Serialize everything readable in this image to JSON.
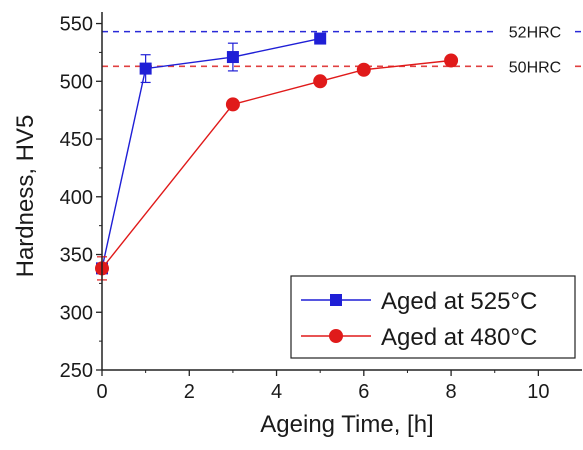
{
  "chart_data": {
    "type": "line",
    "xlabel": "Ageing Time, [h]",
    "ylabel": "Hardness, HV5",
    "xlim": [
      0,
      11
    ],
    "ylim": [
      250,
      560
    ],
    "xticks": [
      0,
      2,
      4,
      6,
      8,
      10
    ],
    "yticks": [
      250,
      300,
      350,
      400,
      450,
      500,
      550
    ],
    "grid": false,
    "legend_position": "bottom-right",
    "reference_lines": [
      {
        "label": "52HRC",
        "y": 543,
        "color": "#2a2ad8"
      },
      {
        "label": "50HRC",
        "y": 513,
        "color": "#e04040"
      }
    ],
    "series": [
      {
        "name": "Aged at 525°C",
        "color": "#1f1fd6",
        "marker": "square",
        "x": [
          0,
          1,
          3,
          5
        ],
        "y": [
          338,
          511,
          521,
          537
        ],
        "error": [
          0,
          12,
          12,
          0
        ]
      },
      {
        "name": "Aged at 480°C",
        "color": "#e01a1a",
        "marker": "circle",
        "x": [
          0,
          3,
          5,
          6,
          8
        ],
        "y": [
          338,
          480,
          500,
          510,
          518
        ],
        "error": [
          10,
          0,
          0,
          0,
          0
        ]
      }
    ]
  }
}
